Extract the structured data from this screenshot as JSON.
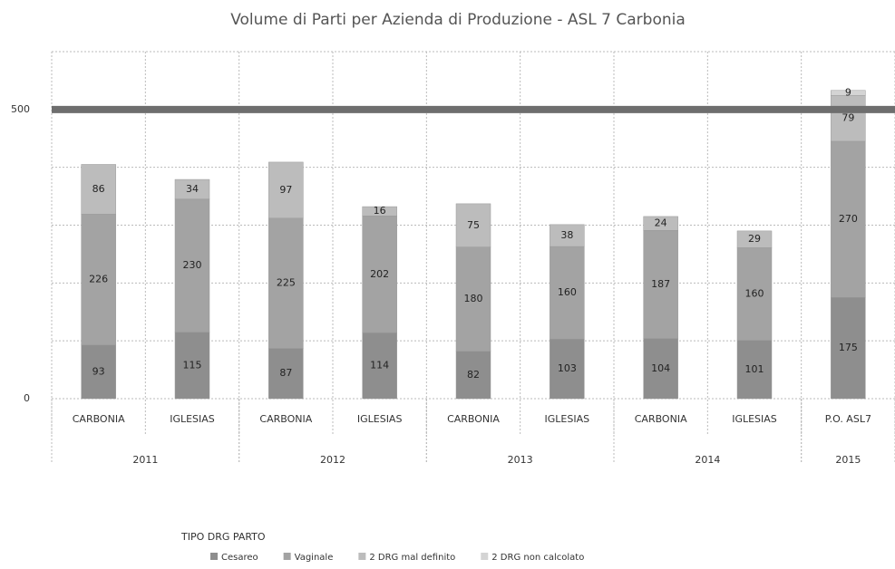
{
  "chart_data": {
    "type": "stacked_bar",
    "title": "Volume di Parti per Azienda di Produzione - ASL 7 Carbonia",
    "categories": [
      "CARBONIA",
      "IGLESIAS",
      "CARBONIA",
      "IGLESIAS",
      "CARBONIA",
      "IGLESIAS",
      "CARBONIA",
      "IGLESIAS",
      "P.O. ASL7"
    ],
    "groups": [
      {
        "label": "2011",
        "size": 2
      },
      {
        "label": "2012",
        "size": 2
      },
      {
        "label": "2013",
        "size": 2
      },
      {
        "label": "2014",
        "size": 2
      },
      {
        "label": "2015",
        "size": 1
      }
    ],
    "legend_title": "TIPO DRG PARTO",
    "series": [
      {
        "name": "Cesareo",
        "color": "#8e8e8e",
        "values": [
          93,
          115,
          87,
          114,
          82,
          103,
          104,
          101,
          175
        ]
      },
      {
        "name": "Vaginale",
        "color": "#a3a3a3",
        "values": [
          226,
          230,
          225,
          202,
          180,
          160,
          187,
          160,
          270
        ]
      },
      {
        "name": "2 DRG mal definito",
        "color": "#bcbcbc",
        "values": [
          86,
          34,
          97,
          16,
          75,
          38,
          24,
          29,
          79
        ]
      },
      {
        "name": "2 DRG non calcolato",
        "color": "#d4d4d4",
        "values": [
          0,
          0,
          0,
          0,
          0,
          0,
          0,
          0,
          9
        ]
      }
    ],
    "ylim": [
      0,
      600
    ],
    "yticks": [
      0,
      500
    ],
    "ygrid": [
      100,
      200,
      300,
      400,
      600
    ],
    "reference_line": 500,
    "grid": true
  }
}
